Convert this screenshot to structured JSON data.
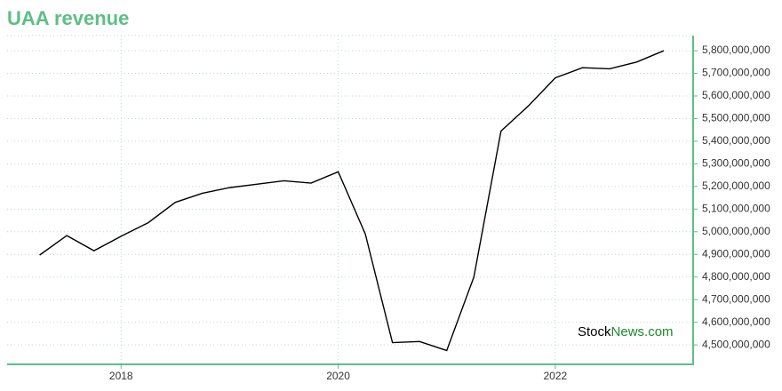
{
  "chart_data": {
    "type": "line",
    "title": "UAA revenue",
    "x": [
      2017.25,
      2017.5,
      2017.75,
      2018,
      2018.25,
      2018.5,
      2018.75,
      2019,
      2019.25,
      2019.5,
      2019.75,
      2020,
      2020.25,
      2020.5,
      2020.75,
      2021,
      2021.25,
      2021.5,
      2021.75,
      2022,
      2022.25,
      2022.5,
      2022.75,
      2023
    ],
    "series": [
      {
        "name": "revenue",
        "color": "#000000",
        "values": [
          4897000000,
          4983000000,
          4916000000,
          4980000000,
          5040000000,
          5130000000,
          5170000000,
          5195000000,
          5210000000,
          5225000000,
          5215000000,
          5265000000,
          4990000000,
          4510000000,
          4515000000,
          4475000000,
          4800000000,
          5445000000,
          5555000000,
          5680000000,
          5725000000,
          5720000000,
          5750000000,
          5800000000
        ]
      }
    ],
    "xlim": [
      2016.95,
      2023.27
    ],
    "xticks": [
      2018,
      2020,
      2022
    ],
    "ylim": [
      4414000000,
      5867000000
    ],
    "yticks": [
      {
        "value": 4500000000,
        "label": "4,500,000,000"
      },
      {
        "value": 4600000000,
        "label": "4,600,000,000"
      },
      {
        "value": 4700000000,
        "label": "4,700,000,000"
      },
      {
        "value": 4800000000,
        "label": "4,800,000,000"
      },
      {
        "value": 4900000000,
        "label": "4,900,000,000"
      },
      {
        "value": 5000000000,
        "label": "5,000,000,000"
      },
      {
        "value": 5100000000,
        "label": "5,100,000,000"
      },
      {
        "value": 5200000000,
        "label": "5,200,000,000"
      },
      {
        "value": 5300000000,
        "label": "5,300,000,000"
      },
      {
        "value": 5400000000,
        "label": "5,400,000,000"
      },
      {
        "value": 5500000000,
        "label": "5,500,000,000"
      },
      {
        "value": 5600000000,
        "label": "5,600,000,000"
      },
      {
        "value": 5700000000,
        "label": "5,700,000,000"
      },
      {
        "value": 5800000000,
        "label": "5,800,000,000"
      }
    ],
    "grid": true,
    "axis_color": "#5dbf86",
    "watermark": [
      "Stock",
      "News.com"
    ]
  }
}
